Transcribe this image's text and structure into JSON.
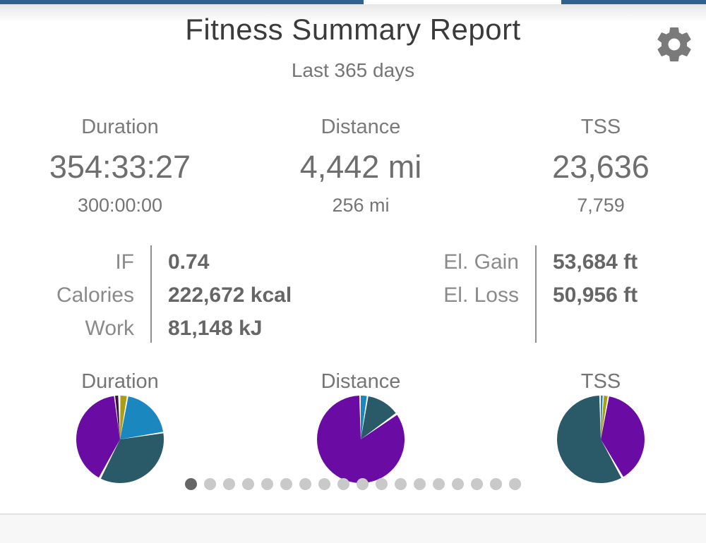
{
  "colors": {
    "top_bar": "#2e6390",
    "pie_purple": "#6a0ca4",
    "pie_teal": "#2a5a68",
    "pie_blue": "#1a87be",
    "pie_yellow": "#ab9d15",
    "pie_dark": "#3c0f45",
    "dot_active": "#666666",
    "dot_inactive": "#c9c9c9"
  },
  "header": {
    "title": "Fitness Summary Report",
    "subtitle": "Last 365 days"
  },
  "stats": [
    {
      "label": "Duration",
      "value": "354:33:27",
      "sub_value": "300:00:00"
    },
    {
      "label": "Distance",
      "value": "4,442 mi",
      "sub_value": "256 mi"
    },
    {
      "label": "TSS",
      "value": "23,636",
      "sub_value": "7,759"
    }
  ],
  "details": {
    "left": [
      {
        "label": "IF",
        "value": "0.74"
      },
      {
        "label": "Calories",
        "value": "222,672 kcal"
      },
      {
        "label": "Work",
        "value": "81,148 kJ"
      }
    ],
    "right": [
      {
        "label": "El. Gain",
        "value": "53,684 ft"
      },
      {
        "label": "El. Loss",
        "value": "50,956 ft"
      }
    ]
  },
  "chart_data": [
    {
      "type": "pie",
      "title": "Duration",
      "legend_position": "none",
      "slices": [
        {
          "name": "segment-1",
          "percent": 39.7,
          "color": "#6a0ca4",
          "start_deg": 209,
          "end_deg": 352
        },
        {
          "name": "segment-2",
          "percent": 1.1,
          "color": "#3c0f45",
          "start_deg": 353.5,
          "end_deg": 357.5
        },
        {
          "name": "segment-3",
          "percent": 2.4,
          "color": "#ab9d15",
          "start_deg": 0.5,
          "end_deg": 9
        },
        {
          "name": "segment-4",
          "percent": 19.2,
          "color": "#1a87be",
          "start_deg": 11,
          "end_deg": 80
        },
        {
          "name": "segment-5",
          "percent": 34.4,
          "color": "#2a5a68",
          "start_deg": 82,
          "end_deg": 206
        }
      ]
    },
    {
      "type": "pie",
      "title": "Distance",
      "legend_position": "none",
      "slices": [
        {
          "name": "segment-1",
          "percent": 2.2,
          "color": "#1a87be",
          "start_deg": 0,
          "end_deg": 8
        },
        {
          "name": "segment-2",
          "percent": 12.0,
          "color": "#2a5a68",
          "start_deg": 10,
          "end_deg": 53
        },
        {
          "name": "segment-3",
          "percent": 83.9,
          "color": "#6a0ca4",
          "start_deg": 56,
          "end_deg": 358
        }
      ]
    },
    {
      "type": "pie",
      "title": "TSS",
      "legend_position": "none",
      "slices": [
        {
          "name": "segment-1",
          "percent": 0.7,
          "color": "#1a87be",
          "start_deg": 0,
          "end_deg": 2.5
        },
        {
          "name": "segment-2",
          "percent": 1.4,
          "color": "#ab9d15",
          "start_deg": 4,
          "end_deg": 9
        },
        {
          "name": "segment-3",
          "percent": 38.3,
          "color": "#6a0ca4",
          "start_deg": 11,
          "end_deg": 149
        },
        {
          "name": "segment-4",
          "percent": 57.2,
          "color": "#2a5a68",
          "start_deg": 152,
          "end_deg": 358
        }
      ]
    }
  ],
  "pager": {
    "count": 18,
    "active_index": 0
  }
}
